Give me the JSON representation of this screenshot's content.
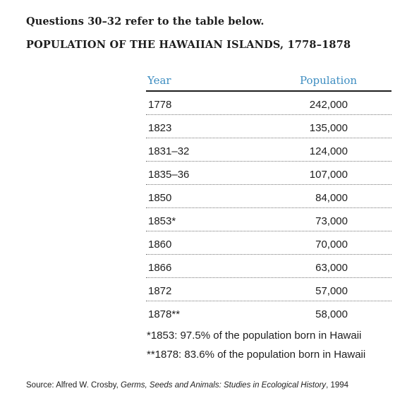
{
  "intro": "Questions 30–32 refer to the table below.",
  "heading": "POPULATION OF THE HAWAIIAN ISLANDS, 1778–1878",
  "table": {
    "headers": {
      "year": "Year",
      "population": "Population"
    },
    "rows": [
      {
        "year": "1778",
        "population": "242,000"
      },
      {
        "year": "1823",
        "population": "135,000"
      },
      {
        "year": "1831–32",
        "population": "124,000"
      },
      {
        "year": "1835–36",
        "population": "107,000"
      },
      {
        "year": "1850",
        "population": "84,000"
      },
      {
        "year": "1853*",
        "population": "73,000"
      },
      {
        "year": "1860",
        "population": "70,000"
      },
      {
        "year": "1866",
        "population": "63,000"
      },
      {
        "year": "1872",
        "population": "57,000"
      },
      {
        "year": "1878**",
        "population": "58,000"
      }
    ],
    "header_color": "#3d8dc1"
  },
  "footnotes": [
    "*1853: 97.5% of the population born in Hawaii",
    "**1878: 83.6% of the population born in Hawaii"
  ],
  "source": {
    "prefix": "Source: Alfred W. Crosby, ",
    "title": "Germs, Seeds and Animals: Studies in Ecological History",
    "suffix": ", 1994"
  }
}
